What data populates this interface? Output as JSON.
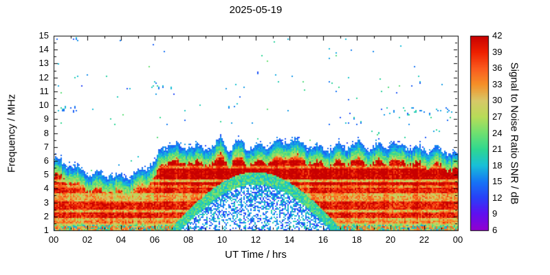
{
  "chart_data": {
    "type": "heatmap",
    "title": "2025-05-19",
    "xlabel": "UT Time / hrs",
    "ylabel": "Frequency / MHz",
    "colorbar_label": "Signal to Noise Ratio SNR / dB",
    "x_range_hours": [
      0,
      24
    ],
    "x_tick_step_hours": 2,
    "x_tick_labels": [
      "00",
      "02",
      "04",
      "06",
      "08",
      "10",
      "12",
      "14",
      "16",
      "18",
      "20",
      "22",
      "00"
    ],
    "y_range_mhz": [
      1,
      15
    ],
    "y_tick_labels": [
      "1",
      "2",
      "3",
      "4",
      "5",
      "6",
      "7",
      "8",
      "9",
      "10",
      "11",
      "12",
      "13",
      "14",
      "15"
    ],
    "snr_range_db": [
      6,
      42
    ],
    "colorbar_tick_labels": [
      "42",
      "39",
      "36",
      "33",
      "30",
      "27",
      "24",
      "21",
      "18",
      "15",
      "12",
      "9",
      "6"
    ],
    "colormap_stops": [
      {
        "snr": 6,
        "color": "#9000d0"
      },
      {
        "snr": 9,
        "color": "#6010f0"
      },
      {
        "snr": 12,
        "color": "#2840f8"
      },
      {
        "snr": 15,
        "color": "#1577f5"
      },
      {
        "snr": 18,
        "color": "#18c0d8"
      },
      {
        "snr": 21,
        "color": "#30d890"
      },
      {
        "snr": 24,
        "color": "#70e070"
      },
      {
        "snr": 27,
        "color": "#b8dc58"
      },
      {
        "snr": 30,
        "color": "#d8c868"
      },
      {
        "snr": 33,
        "color": "#f59028"
      },
      {
        "snr": 36,
        "color": "#fa5a1e"
      },
      {
        "snr": 39,
        "color": "#ee2000"
      },
      {
        "snr": 42,
        "color": "#c80000"
      }
    ],
    "envelope_fof2": {
      "t_hours": [
        0,
        1,
        2,
        3,
        4,
        5,
        6,
        6.5,
        7,
        7.5,
        8,
        8.5,
        9,
        9.5,
        10,
        10.5,
        11,
        11.5,
        12,
        13,
        14,
        15,
        16,
        17,
        18,
        19,
        20,
        21,
        22,
        23,
        24
      ],
      "f_top_mhz": [
        6.1,
        5.7,
        5.2,
        5.0,
        4.9,
        5.1,
        6.0,
        6.9,
        7.4,
        6.8,
        7.2,
        7.0,
        6.9,
        7.1,
        7.6,
        6.9,
        7.4,
        7.1,
        7.0,
        7.2,
        7.5,
        7.2,
        6.9,
        7.0,
        7.2,
        7.0,
        7.2,
        7.0,
        6.9,
        6.8,
        6.4
      ]
    },
    "absorption_daytime": {
      "t_start": 6.8,
      "t_end": 17.2,
      "f_max_mhz": 4.3
    },
    "es_streaks": [
      {
        "t0": 0.1,
        "t1": 1.6,
        "f_mhz": 9.8,
        "density": 0.55
      },
      {
        "t0": 19.4,
        "t1": 23.9,
        "f_mhz": 9.6,
        "density": 0.5
      },
      {
        "t0": 0.9,
        "t1": 2.2,
        "f_mhz": 14.6,
        "density": 0.3
      },
      {
        "t0": 5.8,
        "t1": 7.0,
        "f_mhz": 11.5,
        "density": 0.3
      },
      {
        "t0": 10.2,
        "t1": 10.9,
        "f_mhz": 10.1,
        "density": 0.35
      },
      {
        "t0": 17.2,
        "t1": 18.3,
        "f_mhz": 8.8,
        "density": 0.35
      }
    ],
    "speckle": {
      "density": 0.003,
      "snr_min": 12,
      "snr_max": 24,
      "warm_fraction": 0.04
    },
    "seed": 20250519
  }
}
